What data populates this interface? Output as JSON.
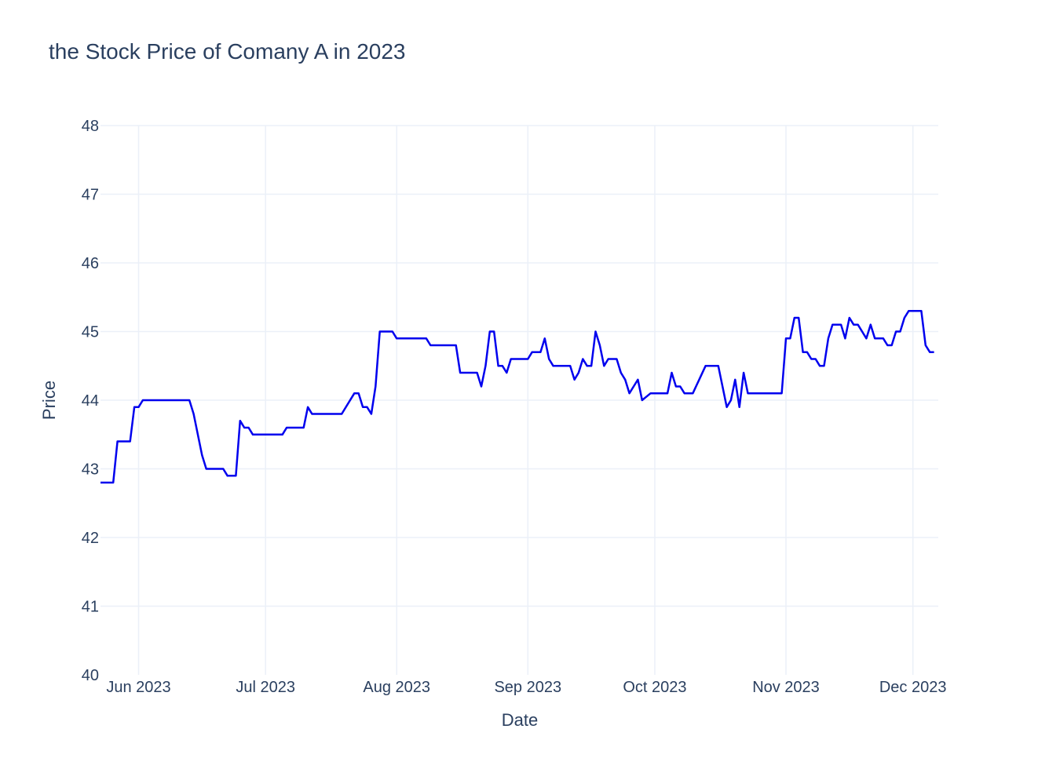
{
  "chart_data": {
    "type": "line",
    "title": "the Stock Price of Comany A in 2023",
    "xlabel": "Date",
    "ylabel": "Price",
    "ylim": [
      40,
      48
    ],
    "xlim": [
      "2023-05-23",
      "2023-12-07"
    ],
    "grid": true,
    "legend": "none",
    "line_color": "#0000ee",
    "y_ticks": [
      "40",
      "41",
      "42",
      "43",
      "44",
      "45",
      "46",
      "47",
      "48"
    ],
    "x_ticks": [
      {
        "date": "2023-06-01",
        "label": "Jun 2023"
      },
      {
        "date": "2023-07-01",
        "label": "Jul 2023"
      },
      {
        "date": "2023-08-01",
        "label": "Aug 2023"
      },
      {
        "date": "2023-09-01",
        "label": "Sep 2023"
      },
      {
        "date": "2023-10-01",
        "label": "Oct 2023"
      },
      {
        "date": "2023-11-01",
        "label": "Nov 2023"
      },
      {
        "date": "2023-12-01",
        "label": "Dec 2023"
      }
    ],
    "series": [
      {
        "x": [
          "2023-05-23",
          "2023-05-26",
          "2023-05-27",
          "2023-05-30",
          "2023-05-31",
          "2023-06-01",
          "2023-06-02",
          "2023-06-04",
          "2023-06-13",
          "2023-06-14",
          "2023-06-16",
          "2023-06-17",
          "2023-06-21",
          "2023-06-22",
          "2023-06-24",
          "2023-06-25",
          "2023-06-26",
          "2023-06-27",
          "2023-06-28",
          "2023-06-29",
          "2023-07-05",
          "2023-07-06",
          "2023-07-10",
          "2023-07-11",
          "2023-07-12",
          "2023-07-19",
          "2023-07-22",
          "2023-07-23",
          "2023-07-24",
          "2023-07-25",
          "2023-07-26",
          "2023-07-27",
          "2023-07-28",
          "2023-07-31",
          "2023-08-01",
          "2023-08-08",
          "2023-08-09",
          "2023-08-15",
          "2023-08-16",
          "2023-08-20",
          "2023-08-21",
          "2023-08-22",
          "2023-08-23",
          "2023-08-24",
          "2023-08-25",
          "2023-08-26",
          "2023-08-27",
          "2023-08-28",
          "2023-09-01",
          "2023-09-02",
          "2023-09-04",
          "2023-09-05",
          "2023-09-06",
          "2023-09-07",
          "2023-09-11",
          "2023-09-12",
          "2023-09-13",
          "2023-09-14",
          "2023-09-15",
          "2023-09-16",
          "2023-09-17",
          "2023-09-18",
          "2023-09-19",
          "2023-09-20",
          "2023-09-21",
          "2023-09-22",
          "2023-09-23",
          "2023-09-24",
          "2023-09-25",
          "2023-09-26",
          "2023-09-27",
          "2023-09-28",
          "2023-09-30",
          "2023-10-03",
          "2023-10-04",
          "2023-10-05",
          "2023-10-06",
          "2023-10-07",
          "2023-10-08",
          "2023-10-10",
          "2023-10-13",
          "2023-10-16",
          "2023-10-17",
          "2023-10-18",
          "2023-10-19",
          "2023-10-20",
          "2023-10-21",
          "2023-10-22",
          "2023-10-23",
          "2023-10-31",
          "2023-11-01",
          "2023-11-02",
          "2023-11-03",
          "2023-11-04",
          "2023-11-05",
          "2023-11-06",
          "2023-11-07",
          "2023-11-08",
          "2023-11-09",
          "2023-11-10",
          "2023-11-11",
          "2023-11-12",
          "2023-11-13",
          "2023-11-14",
          "2023-11-15",
          "2023-11-16",
          "2023-11-17",
          "2023-11-18",
          "2023-11-19",
          "2023-11-20",
          "2023-11-21",
          "2023-11-22",
          "2023-11-23",
          "2023-11-24",
          "2023-11-25",
          "2023-11-26",
          "2023-11-27",
          "2023-11-28",
          "2023-11-29",
          "2023-11-30",
          "2023-12-01",
          "2023-12-02",
          "2023-12-03",
          "2023-12-04",
          "2023-12-05",
          "2023-12-06"
        ],
        "y": [
          42.8,
          42.8,
          43.4,
          43.4,
          43.9,
          43.9,
          44.0,
          44.0,
          44.0,
          43.8,
          43.2,
          43.0,
          43.0,
          42.9,
          42.9,
          43.7,
          43.6,
          43.6,
          43.5,
          43.5,
          43.5,
          43.6,
          43.6,
          43.9,
          43.8,
          43.8,
          44.1,
          44.1,
          43.9,
          43.9,
          43.8,
          44.2,
          45.0,
          45.0,
          44.9,
          44.9,
          44.8,
          44.8,
          44.4,
          44.4,
          44.2,
          44.5,
          45.0,
          45.0,
          44.5,
          44.5,
          44.4,
          44.6,
          44.6,
          44.7,
          44.7,
          44.9,
          44.6,
          44.5,
          44.5,
          44.3,
          44.4,
          44.6,
          44.5,
          44.5,
          45.0,
          44.8,
          44.5,
          44.6,
          44.6,
          44.6,
          44.4,
          44.3,
          44.1,
          44.2,
          44.3,
          44.0,
          44.1,
          44.1,
          44.1,
          44.4,
          44.2,
          44.2,
          44.1,
          44.1,
          44.5,
          44.5,
          44.2,
          43.9,
          44.0,
          44.3,
          43.9,
          44.4,
          44.1,
          44.1,
          44.9,
          44.9,
          45.2,
          45.2,
          44.7,
          44.7,
          44.6,
          44.6,
          44.5,
          44.5,
          44.9,
          45.1,
          45.1,
          45.1,
          44.9,
          45.2,
          45.1,
          45.1,
          45.0,
          44.9,
          45.1,
          44.9,
          44.9,
          44.9,
          44.8,
          44.8,
          45.0,
          45.0,
          45.2,
          45.3,
          45.3,
          45.3,
          45.3,
          44.8,
          44.7,
          44.7
        ]
      }
    ]
  }
}
